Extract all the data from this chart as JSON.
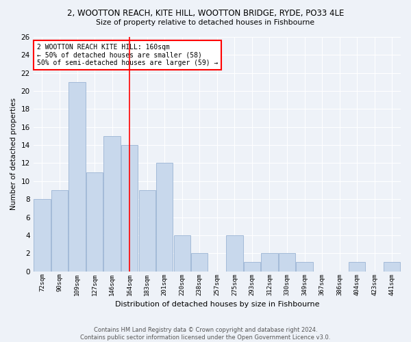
{
  "title": "2, WOOTTON REACH, KITE HILL, WOOTTON BRIDGE, RYDE, PO33 4LE",
  "subtitle": "Size of property relative to detached houses in Fishbourne",
  "xlabel": "Distribution of detached houses by size in Fishbourne",
  "ylabel": "Number of detached properties",
  "categories": [
    "72sqm",
    "90sqm",
    "109sqm",
    "127sqm",
    "146sqm",
    "164sqm",
    "183sqm",
    "201sqm",
    "220sqm",
    "238sqm",
    "257sqm",
    "275sqm",
    "293sqm",
    "312sqm",
    "330sqm",
    "349sqm",
    "367sqm",
    "386sqm",
    "404sqm",
    "423sqm",
    "441sqm"
  ],
  "values": [
    8,
    9,
    21,
    11,
    15,
    14,
    9,
    12,
    4,
    2,
    0,
    4,
    1,
    2,
    2,
    1,
    0,
    0,
    1,
    0,
    1
  ],
  "bar_color": "#c8d8ec",
  "bar_edge_color": "#9ab4d4",
  "background_color": "#eef2f8",
  "grid_color": "#ffffff",
  "red_line_x": 5.0,
  "annotation_line1": "2 WOOTTON REACH KITE HILL: 160sqm",
  "annotation_line2": "← 50% of detached houses are smaller (58)",
  "annotation_line3": "50% of semi-detached houses are larger (59) →",
  "ylim": [
    0,
    26
  ],
  "yticks": [
    0,
    2,
    4,
    6,
    8,
    10,
    12,
    14,
    16,
    18,
    20,
    22,
    24,
    26
  ],
  "footer_line1": "Contains HM Land Registry data © Crown copyright and database right 2024.",
  "footer_line2": "Contains public sector information licensed under the Open Government Licence v3.0."
}
